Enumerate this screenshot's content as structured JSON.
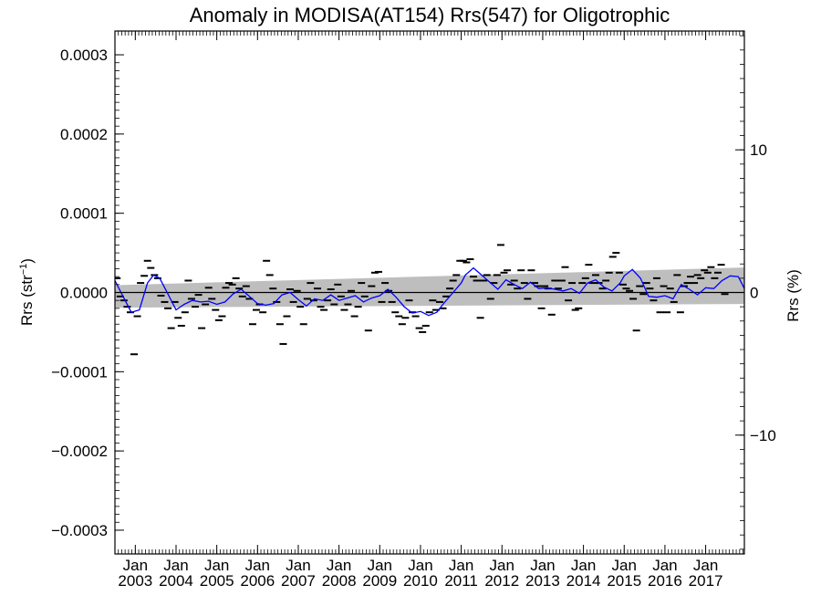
{
  "chart_data": {
    "type": "scatter",
    "title": "Anomaly in MODISA(AT154) Rrs(547) for Oligotrophic",
    "ylabel": "Rrs (str",
    "ylabel_sup": "−1",
    "ylabel_close": ")",
    "y2label": "Rrs (%)",
    "xlim": [
      2002.5,
      2017.95
    ],
    "ylim": [
      -0.00033,
      0.00033
    ],
    "y2lim": [
      -18.33,
      18.33
    ],
    "grid": false,
    "yticks": [
      {
        "value": 0.0003,
        "label": "0.0003"
      },
      {
        "value": 0.0002,
        "label": "0.0002"
      },
      {
        "value": 0.0001,
        "label": "0.0001"
      },
      {
        "value": 0.0,
        "label": "0.0000"
      },
      {
        "value": -0.0001,
        "label": "−0.0001"
      },
      {
        "value": -0.0002,
        "label": "−0.0002"
      },
      {
        "value": -0.0003,
        "label": "−0.0003"
      }
    ],
    "y2ticks": [
      {
        "value": 10,
        "label": "10"
      },
      {
        "value": 0,
        "label": "0"
      },
      {
        "value": -10,
        "label": "−10"
      }
    ],
    "xticks": [
      {
        "value": 2003.0,
        "month": "Jan",
        "year": "2003"
      },
      {
        "value": 2004.0,
        "month": "Jan",
        "year": "2004"
      },
      {
        "value": 2005.0,
        "month": "Jan",
        "year": "2005"
      },
      {
        "value": 2006.0,
        "month": "Jan",
        "year": "2006"
      },
      {
        "value": 2007.0,
        "month": "Jan",
        "year": "2007"
      },
      {
        "value": 2008.0,
        "month": "Jan",
        "year": "2008"
      },
      {
        "value": 2009.0,
        "month": "Jan",
        "year": "2009"
      },
      {
        "value": 2010.0,
        "month": "Jan",
        "year": "2010"
      },
      {
        "value": 2011.0,
        "month": "Jan",
        "year": "2011"
      },
      {
        "value": 2012.0,
        "month": "Jan",
        "year": "2012"
      },
      {
        "value": 2013.0,
        "month": "Jan",
        "year": "2013"
      },
      {
        "value": 2014.0,
        "month": "Jan",
        "year": "2014"
      },
      {
        "value": 2015.0,
        "month": "Jan",
        "year": "2015"
      },
      {
        "value": 2016.0,
        "month": "Jan",
        "year": "2016"
      },
      {
        "value": 2017.0,
        "month": "Jan",
        "year": "2017"
      }
    ],
    "band": {
      "color": "#bebebe",
      "x": [
        2002.5,
        2017.95
      ],
      "upper": [
        9.2e-06,
        3.15e-05
      ],
      "lower": [
        -1.92e-05,
        -1.45e-05
      ]
    },
    "zero_line_color": "#000000",
    "running_mean": {
      "color": "#0000ff",
      "x": [
        2002.5,
        2002.7,
        2002.9,
        2003.1,
        2003.3,
        2003.45,
        2003.6,
        2003.8,
        2004.0,
        2004.2,
        2004.4,
        2004.6,
        2004.8,
        2005.0,
        2005.2,
        2005.4,
        2005.6,
        2005.8,
        2006.0,
        2006.2,
        2006.4,
        2006.6,
        2006.8,
        2007.0,
        2007.2,
        2007.4,
        2007.6,
        2007.8,
        2008.0,
        2008.2,
        2008.4,
        2008.6,
        2008.8,
        2009.0,
        2009.2,
        2009.4,
        2009.6,
        2009.8,
        2010.0,
        2010.2,
        2010.4,
        2010.6,
        2010.8,
        2011.0,
        2011.1,
        2011.3,
        2011.5,
        2011.7,
        2011.9,
        2012.1,
        2012.3,
        2012.5,
        2012.7,
        2012.9,
        2013.1,
        2013.3,
        2013.5,
        2013.7,
        2013.9,
        2014.1,
        2014.3,
        2014.5,
        2014.7,
        2014.9,
        2015.0,
        2015.2,
        2015.4,
        2015.6,
        2015.8,
        2016.0,
        2016.2,
        2016.4,
        2016.6,
        2016.8,
        2017.0,
        2017.2,
        2017.4,
        2017.6,
        2017.8,
        2017.95
      ],
      "y": [
        1.5e-05,
        -5e-06,
        -2.5e-05,
        -2.2e-05,
        1.2e-05,
        2.2e-05,
        1.8e-05,
        -2e-06,
        -2.2e-05,
        -1.5e-05,
        -1e-05,
        -1.2e-05,
        -1.1e-05,
        -1.5e-05,
        -1.2e-05,
        -2e-06,
        4e-06,
        -5e-06,
        -1.4e-05,
        -1.6e-05,
        -1.4e-05,
        -3e-06,
        0.0,
        -9e-06,
        -1.7e-05,
        -8e-06,
        -1e-05,
        -3e-06,
        -1e-05,
        -7e-06,
        -4e-06,
        -1.2e-05,
        -7e-06,
        -4e-06,
        4e-06,
        -6e-06,
        -1.8e-05,
        -2.6e-05,
        -2.4e-05,
        -2.9e-05,
        -2.5e-05,
        -1.2e-05,
        0.0,
        1.2e-05,
        2.2e-05,
        3.1e-05,
        2.2e-05,
        1.3e-05,
        4e-06,
        1.6e-05,
        1e-05,
        5e-06,
        1.3e-05,
        5e-06,
        6e-06,
        4e-06,
        2e-06,
        5e-06,
        -1e-06,
        1.2e-05,
        1.6e-05,
        7e-06,
        2e-06,
        1.2e-05,
        2.1e-05,
        2.9e-05,
        1.8e-05,
        -5e-06,
        -6e-06,
        -4e-06,
        -8e-06,
        1e-05,
        4e-06,
        -3e-06,
        6e-06,
        5e-06,
        1.5e-05,
        2.1e-05,
        2e-05,
        5e-06
      ]
    },
    "points_color": "#000000",
    "points": [
      [
        2002.55,
        1.8e-05
      ],
      [
        2002.63,
        -5e-06
      ],
      [
        2002.72,
        -1e-05
      ],
      [
        2002.8,
        -1.8e-05
      ],
      [
        2002.88,
        -2.5e-05
      ],
      [
        2002.97,
        -7.8e-05
      ],
      [
        2003.05,
        -3e-05
      ],
      [
        2003.13,
        1.2e-05
      ],
      [
        2003.22,
        2.1e-05
      ],
      [
        2003.3,
        4e-05
      ],
      [
        2003.38,
        3.1e-05
      ],
      [
        2003.47,
        2.2e-05
      ],
      [
        2003.55,
        1.8e-05
      ],
      [
        2003.63,
        -4e-06
      ],
      [
        2003.72,
        -1.2e-05
      ],
      [
        2003.8,
        -2e-05
      ],
      [
        2003.88,
        -4.5e-05
      ],
      [
        2003.97,
        -1.2e-05
      ],
      [
        2004.05,
        -3.2e-05
      ],
      [
        2004.13,
        -4.2e-05
      ],
      [
        2004.22,
        -2.5e-05
      ],
      [
        2004.3,
        1.5e-05
      ],
      [
        2004.38,
        -8e-06
      ],
      [
        2004.47,
        -1.8e-05
      ],
      [
        2004.55,
        -3e-06
      ],
      [
        2004.63,
        -4.5e-05
      ],
      [
        2004.72,
        -1.5e-05
      ],
      [
        2004.8,
        6e-06
      ],
      [
        2004.88,
        -8e-06
      ],
      [
        2004.97,
        -2.2e-05
      ],
      [
        2005.05,
        -3.5e-05
      ],
      [
        2005.13,
        -3e-05
      ],
      [
        2005.22,
        6e-06
      ],
      [
        2005.3,
        1.2e-05
      ],
      [
        2005.38,
        1e-05
      ],
      [
        2005.47,
        1.8e-05
      ],
      [
        2005.55,
        5e-06
      ],
      [
        2005.63,
        -5e-06
      ],
      [
        2005.72,
        8e-06
      ],
      [
        2005.8,
        -8e-06
      ],
      [
        2005.88,
        -4e-05
      ],
      [
        2005.97,
        -2.2e-05
      ],
      [
        2006.05,
        -1.5e-05
      ],
      [
        2006.13,
        -2.5e-05
      ],
      [
        2006.22,
        4e-05
      ],
      [
        2006.3,
        2.2e-05
      ],
      [
        2006.38,
        5e-06
      ],
      [
        2006.47,
        -1.2e-05
      ],
      [
        2006.55,
        -4e-05
      ],
      [
        2006.63,
        -6.5e-05
      ],
      [
        2006.72,
        -3e-05
      ],
      [
        2006.8,
        4e-06
      ],
      [
        2006.88,
        -1.2e-05
      ],
      [
        2006.97,
        2e-06
      ],
      [
        2007.05,
        -1.8e-05
      ],
      [
        2007.13,
        -4e-05
      ],
      [
        2007.22,
        -8e-06
      ],
      [
        2007.3,
        1.2e-05
      ],
      [
        2007.38,
        -1e-05
      ],
      [
        2007.47,
        5e-06
      ],
      [
        2007.55,
        -1.8e-05
      ],
      [
        2007.63,
        -2.2e-05
      ],
      [
        2007.72,
        -1e-05
      ],
      [
        2007.8,
        4e-06
      ],
      [
        2007.88,
        -1.5e-05
      ],
      [
        2007.97,
        1e-05
      ],
      [
        2008.05,
        -5e-06
      ],
      [
        2008.13,
        -2.2e-05
      ],
      [
        2008.22,
        -1.5e-05
      ],
      [
        2008.3,
        2e-06
      ],
      [
        2008.38,
        -3e-05
      ],
      [
        2008.47,
        -1.8e-05
      ],
      [
        2008.55,
        1.2e-05
      ],
      [
        2008.63,
        -5e-06
      ],
      [
        2008.72,
        -4.8e-05
      ],
      [
        2008.8,
        8e-06
      ],
      [
        2008.88,
        2.5e-05
      ],
      [
        2008.97,
        2.6e-05
      ],
      [
        2009.05,
        -1.2e-05
      ],
      [
        2009.13,
        1.2e-05
      ],
      [
        2009.22,
        2e-06
      ],
      [
        2009.3,
        -1.2e-05
      ],
      [
        2009.38,
        -2.5e-05
      ],
      [
        2009.47,
        -3e-05
      ],
      [
        2009.55,
        -4e-05
      ],
      [
        2009.63,
        -3.2e-05
      ],
      [
        2009.72,
        -1e-05
      ],
      [
        2009.8,
        -2.5e-05
      ],
      [
        2009.88,
        -3e-05
      ],
      [
        2009.97,
        -4.5e-05
      ],
      [
        2010.05,
        -5e-05
      ],
      [
        2010.13,
        -4.2e-05
      ],
      [
        2010.22,
        -2.5e-05
      ],
      [
        2010.3,
        -1e-05
      ],
      [
        2010.38,
        -2.2e-05
      ],
      [
        2010.47,
        -1.2e-05
      ],
      [
        2010.55,
        -2e-05
      ],
      [
        2010.63,
        -5e-06
      ],
      [
        2010.72,
        5e-06
      ],
      [
        2010.8,
        1.5e-05
      ],
      [
        2010.88,
        2.2e-05
      ],
      [
        2010.97,
        4e-05
      ],
      [
        2011.05,
        4e-05
      ],
      [
        2011.13,
        3.8e-05
      ],
      [
        2011.22,
        4.2e-05
      ],
      [
        2011.3,
        2e-05
      ],
      [
        2011.38,
        1.5e-05
      ],
      [
        2011.47,
        -3.2e-05
      ],
      [
        2011.55,
        1.5e-05
      ],
      [
        2011.63,
        2.2e-05
      ],
      [
        2011.72,
        -8e-06
      ],
      [
        2011.8,
        1.2e-05
      ],
      [
        2011.88,
        2.2e-05
      ],
      [
        2011.97,
        6e-05
      ],
      [
        2012.05,
        2.5e-05
      ],
      [
        2012.13,
        2.8e-05
      ],
      [
        2012.22,
        1e-05
      ],
      [
        2012.3,
        1.5e-05
      ],
      [
        2012.38,
        5e-06
      ],
      [
        2012.47,
        2.8e-05
      ],
      [
        2012.55,
        1.2e-05
      ],
      [
        2012.63,
        -8e-06
      ],
      [
        2012.72,
        2.8e-05
      ],
      [
        2012.8,
        1.2e-05
      ],
      [
        2012.88,
        8e-06
      ],
      [
        2012.97,
        -2e-05
      ],
      [
        2013.05,
        8e-06
      ],
      [
        2013.13,
        5e-06
      ],
      [
        2013.22,
        -2.8e-05
      ],
      [
        2013.3,
        1.5e-05
      ],
      [
        2013.38,
        5e-06
      ],
      [
        2013.47,
        1.5e-05
      ],
      [
        2013.55,
        3.2e-05
      ],
      [
        2013.63,
        -1e-05
      ],
      [
        2013.72,
        1.2e-05
      ],
      [
        2013.8,
        -2.2e-05
      ],
      [
        2013.88,
        -2e-05
      ],
      [
        2013.97,
        1.2e-05
      ],
      [
        2014.05,
        1.8e-05
      ],
      [
        2014.13,
        3.5e-05
      ],
      [
        2014.22,
        1.2e-05
      ],
      [
        2014.3,
        2.2e-05
      ],
      [
        2014.38,
        1.2e-05
      ],
      [
        2014.47,
        5e-06
      ],
      [
        2014.55,
        1.5e-05
      ],
      [
        2014.63,
        2.5e-05
      ],
      [
        2014.72,
        4.5e-05
      ],
      [
        2014.8,
        5e-05
      ],
      [
        2014.88,
        2.5e-05
      ],
      [
        2014.97,
        1e-05
      ],
      [
        2015.05,
        5e-06
      ],
      [
        2015.13,
        2e-06
      ],
      [
        2015.22,
        -8e-06
      ],
      [
        2015.3,
        -4.8e-05
      ],
      [
        2015.38,
        8e-06
      ],
      [
        2015.47,
        -2e-06
      ],
      [
        2015.55,
        1.2e-05
      ],
      [
        2015.63,
        5e-06
      ],
      [
        2015.72,
        -1e-05
      ],
      [
        2015.8,
        1.8e-05
      ],
      [
        2015.88,
        -2.5e-05
      ],
      [
        2015.97,
        8e-06
      ],
      [
        2016.05,
        -2.5e-05
      ],
      [
        2016.13,
        5e-06
      ],
      [
        2016.22,
        -1.2e-05
      ],
      [
        2016.3,
        2.2e-05
      ],
      [
        2016.38,
        -2.5e-05
      ],
      [
        2016.47,
        8e-06
      ],
      [
        2016.55,
        1.2e-05
      ],
      [
        2016.63,
        2e-05
      ],
      [
        2016.72,
        1.2e-05
      ],
      [
        2016.8,
        2.2e-05
      ],
      [
        2016.88,
        1.8e-05
      ],
      [
        2016.97,
        2.8e-05
      ],
      [
        2017.05,
        2.5e-05
      ],
      [
        2017.13,
        3.2e-05
      ],
      [
        2017.22,
        1.8e-05
      ],
      [
        2017.3,
        2.5e-05
      ],
      [
        2017.38,
        3.5e-05
      ],
      [
        2017.47,
        -2e-06
      ]
    ]
  }
}
